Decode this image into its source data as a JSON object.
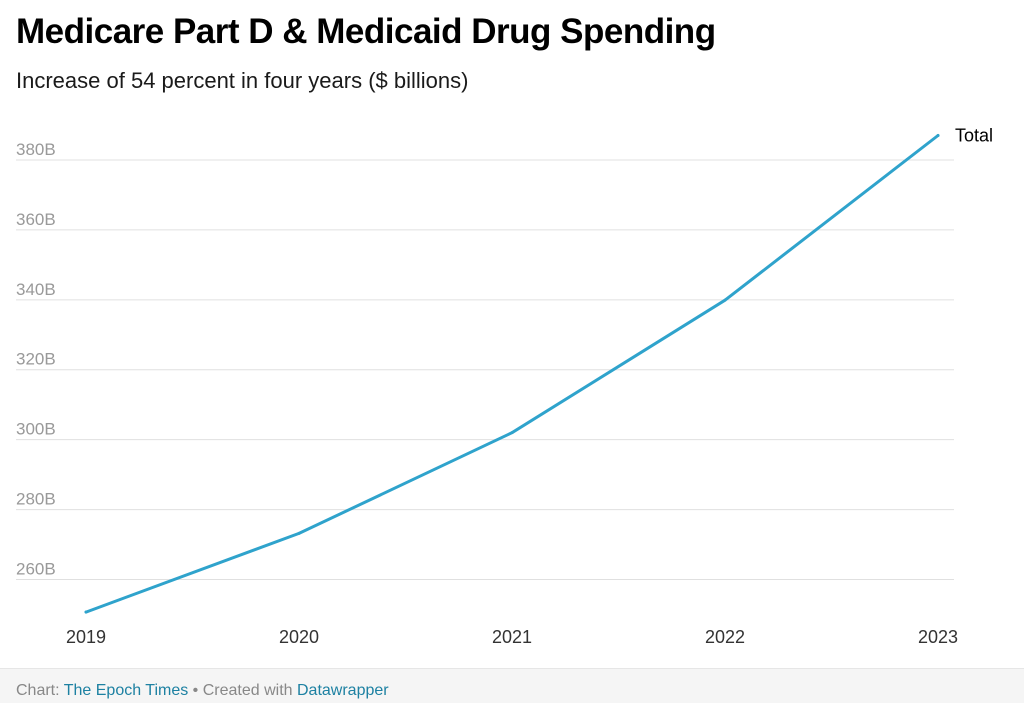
{
  "title": "Medicare Part D & Medicaid Drug Spending",
  "subtitle": "Increase of 54 percent in four years ($ billions)",
  "chart_data": {
    "type": "line",
    "title": "Medicare Part D & Medicaid Drug Spending",
    "subtitle": "Increase of 54 percent in four years ($ billions)",
    "x": [
      "2019",
      "2020",
      "2021",
      "2022",
      "2023"
    ],
    "series": [
      {
        "name": "Total",
        "values": [
          250.7,
          273.2,
          302.0,
          339.9,
          387.0
        ],
        "color": "#2fa3cc"
      }
    ],
    "yticks": [
      260,
      280,
      300,
      320,
      340,
      360,
      380
    ],
    "ytick_labels": [
      "260B",
      "280B",
      "300B",
      "320B",
      "340B",
      "360B",
      "380B"
    ],
    "ylim": [
      249,
      392
    ],
    "grid": true,
    "legend": "direct label at line end",
    "xlabel": "",
    "ylabel": ""
  },
  "footer": {
    "chart_prefix": "Chart: ",
    "source": "The Epoch Times",
    "separator": " • Created with ",
    "tool": "Datawrapper"
  },
  "colors": {
    "line": "#2fa3cc",
    "grid": "#e0e0e0",
    "tick_text": "#999999",
    "link": "#1d81a2"
  }
}
